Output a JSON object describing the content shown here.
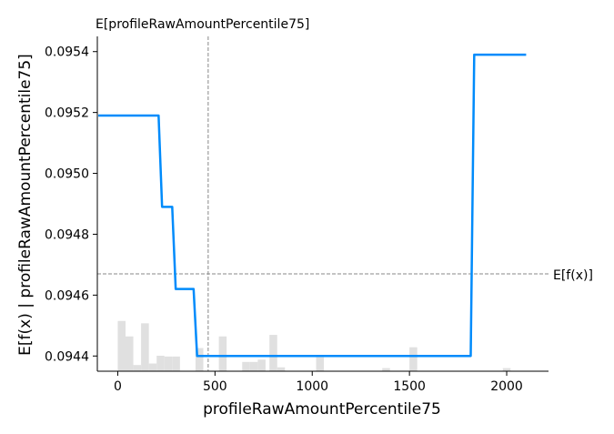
{
  "chart_data": {
    "type": "line",
    "title": "",
    "xlabel": "profileRawAmountPercentile75",
    "ylabel": "E[f(x) | profileRawAmountPercentile75]",
    "xlim": [
      -105,
      2215
    ],
    "ylim": [
      0.09435,
      0.09545
    ],
    "x_ticks": [
      0,
      500,
      1000,
      1500,
      2000
    ],
    "x_tick_labels": [
      "0",
      "500",
      "1000",
      "1500",
      "2000"
    ],
    "y_ticks": [
      0.0944,
      0.0946,
      0.0948,
      0.095,
      0.0952,
      0.0954
    ],
    "y_tick_labels": [
      "0.0944",
      "0.0946",
      "0.0948",
      "0.0950",
      "0.0952",
      "0.0954"
    ],
    "grid": false,
    "colors": {
      "line": "#008bfb",
      "hist": "#e0e0e0",
      "ref": "#888888"
    },
    "series": [
      {
        "x": [
          -100,
          210,
          228,
          280,
          298,
          390,
          408,
          1815,
          1833,
          2100
        ],
        "y": [
          0.09519,
          0.09519,
          0.09489,
          0.09489,
          0.09462,
          0.09462,
          0.0944,
          0.0944,
          0.09539,
          0.09539
        ]
      }
    ],
    "expected_x": {
      "value": 465,
      "label": "E[profileRawAmountPercentile75]"
    },
    "expected_y": {
      "value": 0.09467,
      "label": "E[f(x)]"
    },
    "histogram": {
      "bin_width": 40,
      "bins": [
        {
          "x": 0,
          "h": 0.65
        },
        {
          "x": 40,
          "h": 0.45
        },
        {
          "x": 80,
          "h": 0.08
        },
        {
          "x": 120,
          "h": 0.62
        },
        {
          "x": 160,
          "h": 0.1
        },
        {
          "x": 200,
          "h": 0.2
        },
        {
          "x": 240,
          "h": 0.19
        },
        {
          "x": 280,
          "h": 0.19
        },
        {
          "x": 400,
          "h": 0.3
        },
        {
          "x": 520,
          "h": 0.45
        },
        {
          "x": 640,
          "h": 0.12
        },
        {
          "x": 680,
          "h": 0.12
        },
        {
          "x": 720,
          "h": 0.15
        },
        {
          "x": 780,
          "h": 0.47
        },
        {
          "x": 820,
          "h": 0.05
        },
        {
          "x": 1020,
          "h": 0.18
        },
        {
          "x": 1360,
          "h": 0.04
        },
        {
          "x": 1500,
          "h": 0.31
        },
        {
          "x": 1980,
          "h": 0.04
        }
      ]
    }
  }
}
